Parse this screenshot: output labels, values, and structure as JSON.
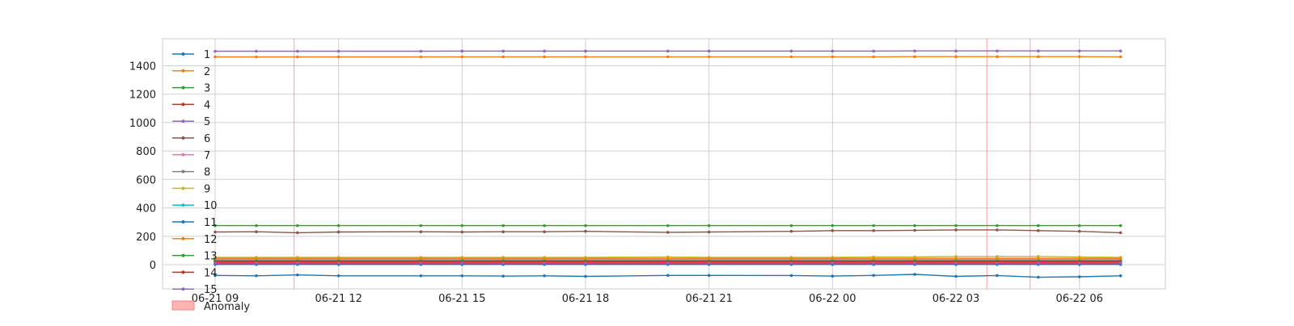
{
  "chart_data": {
    "type": "line",
    "title": "",
    "xlabel": "",
    "ylabel": "",
    "x_range": [
      "2024-06-21 09:00",
      "2024-06-22 07:30"
    ],
    "ylim": [
      -170,
      1590
    ],
    "grid": true,
    "legend_placement": "upper-left",
    "x_tick_labels": [
      {
        "t": "2024-06-21 09:00",
        "label": "06-21 09"
      },
      {
        "t": "2024-06-21 12:00",
        "label": "06-21 12"
      },
      {
        "t": "2024-06-21 15:00",
        "label": "06-21 15"
      },
      {
        "t": "2024-06-21 18:00",
        "label": "06-21 18"
      },
      {
        "t": "2024-06-21 21:00",
        "label": "06-21 21"
      },
      {
        "t": "2024-06-22 00:00",
        "label": "06-22 00"
      },
      {
        "t": "2024-06-22 03:00",
        "label": "06-22 03"
      },
      {
        "t": "2024-06-22 06:00",
        "label": "06-22 06"
      }
    ],
    "y_ticks": [
      0,
      200,
      400,
      600,
      800,
      1000,
      1200,
      1400
    ],
    "anomalies": [
      "2024-06-21 10:55",
      "2024-06-22 03:45",
      "2024-06-22 04:48"
    ],
    "anomaly_label": "Anomaly",
    "x": [
      "2024-06-21 09:00",
      "2024-06-21 10:00",
      "2024-06-21 11:00",
      "2024-06-21 12:00",
      "2024-06-21 14:00",
      "2024-06-21 15:00",
      "2024-06-21 16:00",
      "2024-06-21 17:00",
      "2024-06-21 18:00",
      "2024-06-21 20:00",
      "2024-06-21 21:00",
      "2024-06-21 23:00",
      "2024-06-22 00:00",
      "2024-06-22 01:00",
      "2024-06-22 02:00",
      "2024-06-22 03:00",
      "2024-06-22 04:00",
      "2024-06-22 05:00",
      "2024-06-22 06:00",
      "2024-06-22 07:00"
    ],
    "series": [
      {
        "name": "1",
        "color": "#1f77b4",
        "values": [
          -75,
          -78,
          -72,
          -78,
          -78,
          -78,
          -80,
          -78,
          -82,
          -75,
          -75,
          -76,
          -80,
          -75,
          -68,
          -82,
          -76,
          -88,
          -85,
          -78
        ]
      },
      {
        "name": "2",
        "color": "#ff7f0e",
        "values": [
          1462,
          1462,
          1462,
          1462,
          1462,
          1463,
          1463,
          1463,
          1463,
          1463,
          1463,
          1463,
          1463,
          1463,
          1464,
          1464,
          1464,
          1464,
          1464,
          1463
        ]
      },
      {
        "name": "3",
        "color": "#2ca02c",
        "values": [
          275,
          275,
          275,
          275,
          275,
          275,
          275,
          275,
          275,
          275,
          275,
          275,
          275,
          275,
          275,
          275,
          275,
          275,
          275,
          275
        ]
      },
      {
        "name": "4",
        "color": "#d62728",
        "values": [
          8,
          8,
          8,
          8,
          8,
          8,
          8,
          8,
          8,
          8,
          8,
          8,
          8,
          8,
          8,
          8,
          8,
          8,
          8,
          8
        ]
      },
      {
        "name": "5",
        "color": "#9467bd",
        "values": [
          1502,
          1502,
          1502,
          1502,
          1502,
          1503,
          1503,
          1503,
          1503,
          1503,
          1503,
          1503,
          1503,
          1503,
          1504,
          1504,
          1504,
          1504,
          1504,
          1504
        ]
      },
      {
        "name": "6",
        "color": "#8c564b",
        "values": [
          230,
          232,
          225,
          230,
          232,
          230,
          232,
          232,
          235,
          228,
          230,
          235,
          240,
          240,
          242,
          245,
          245,
          240,
          235,
          225
        ]
      },
      {
        "name": "7",
        "color": "#e377c2",
        "values": [
          40,
          40,
          40,
          40,
          40,
          40,
          40,
          40,
          40,
          40,
          40,
          40,
          40,
          40,
          40,
          40,
          40,
          40,
          40,
          40
        ]
      },
      {
        "name": "8",
        "color": "#7f7f7f",
        "values": [
          32,
          32,
          32,
          32,
          32,
          32,
          32,
          32,
          32,
          32,
          32,
          32,
          32,
          32,
          32,
          32,
          32,
          32,
          32,
          32
        ]
      },
      {
        "name": "9",
        "color": "#bcbd22",
        "values": [
          52,
          52,
          52,
          52,
          52,
          52,
          52,
          52,
          52,
          55,
          52,
          52,
          52,
          55,
          55,
          58,
          58,
          58,
          55,
          52
        ]
      },
      {
        "name": "10",
        "color": "#17becf",
        "values": [
          15,
          15,
          15,
          15,
          15,
          15,
          15,
          15,
          15,
          15,
          15,
          15,
          15,
          15,
          15,
          15,
          15,
          15,
          15,
          15
        ]
      },
      {
        "name": "11",
        "color": "#1f77b4",
        "values": [
          2,
          2,
          2,
          2,
          2,
          2,
          2,
          2,
          2,
          2,
          2,
          2,
          2,
          2,
          2,
          2,
          2,
          2,
          2,
          2
        ]
      },
      {
        "name": "12",
        "color": "#ff7f0e",
        "values": [
          45,
          45,
          45,
          45,
          45,
          45,
          45,
          45,
          45,
          45,
          45,
          45,
          45,
          45,
          45,
          45,
          45,
          45,
          45,
          45
        ]
      },
      {
        "name": "13",
        "color": "#2ca02c",
        "values": [
          25,
          25,
          25,
          25,
          25,
          25,
          25,
          25,
          25,
          25,
          25,
          25,
          25,
          25,
          25,
          25,
          25,
          25,
          25,
          25
        ]
      },
      {
        "name": "14",
        "color": "#d62728",
        "values": [
          20,
          20,
          20,
          20,
          20,
          20,
          20,
          20,
          20,
          20,
          20,
          20,
          20,
          20,
          20,
          20,
          20,
          20,
          20,
          20
        ]
      },
      {
        "name": "15",
        "color": "#9467bd",
        "values": [
          12,
          12,
          12,
          12,
          12,
          12,
          12,
          12,
          12,
          12,
          12,
          12,
          12,
          12,
          12,
          12,
          12,
          12,
          12,
          12
        ]
      }
    ]
  }
}
